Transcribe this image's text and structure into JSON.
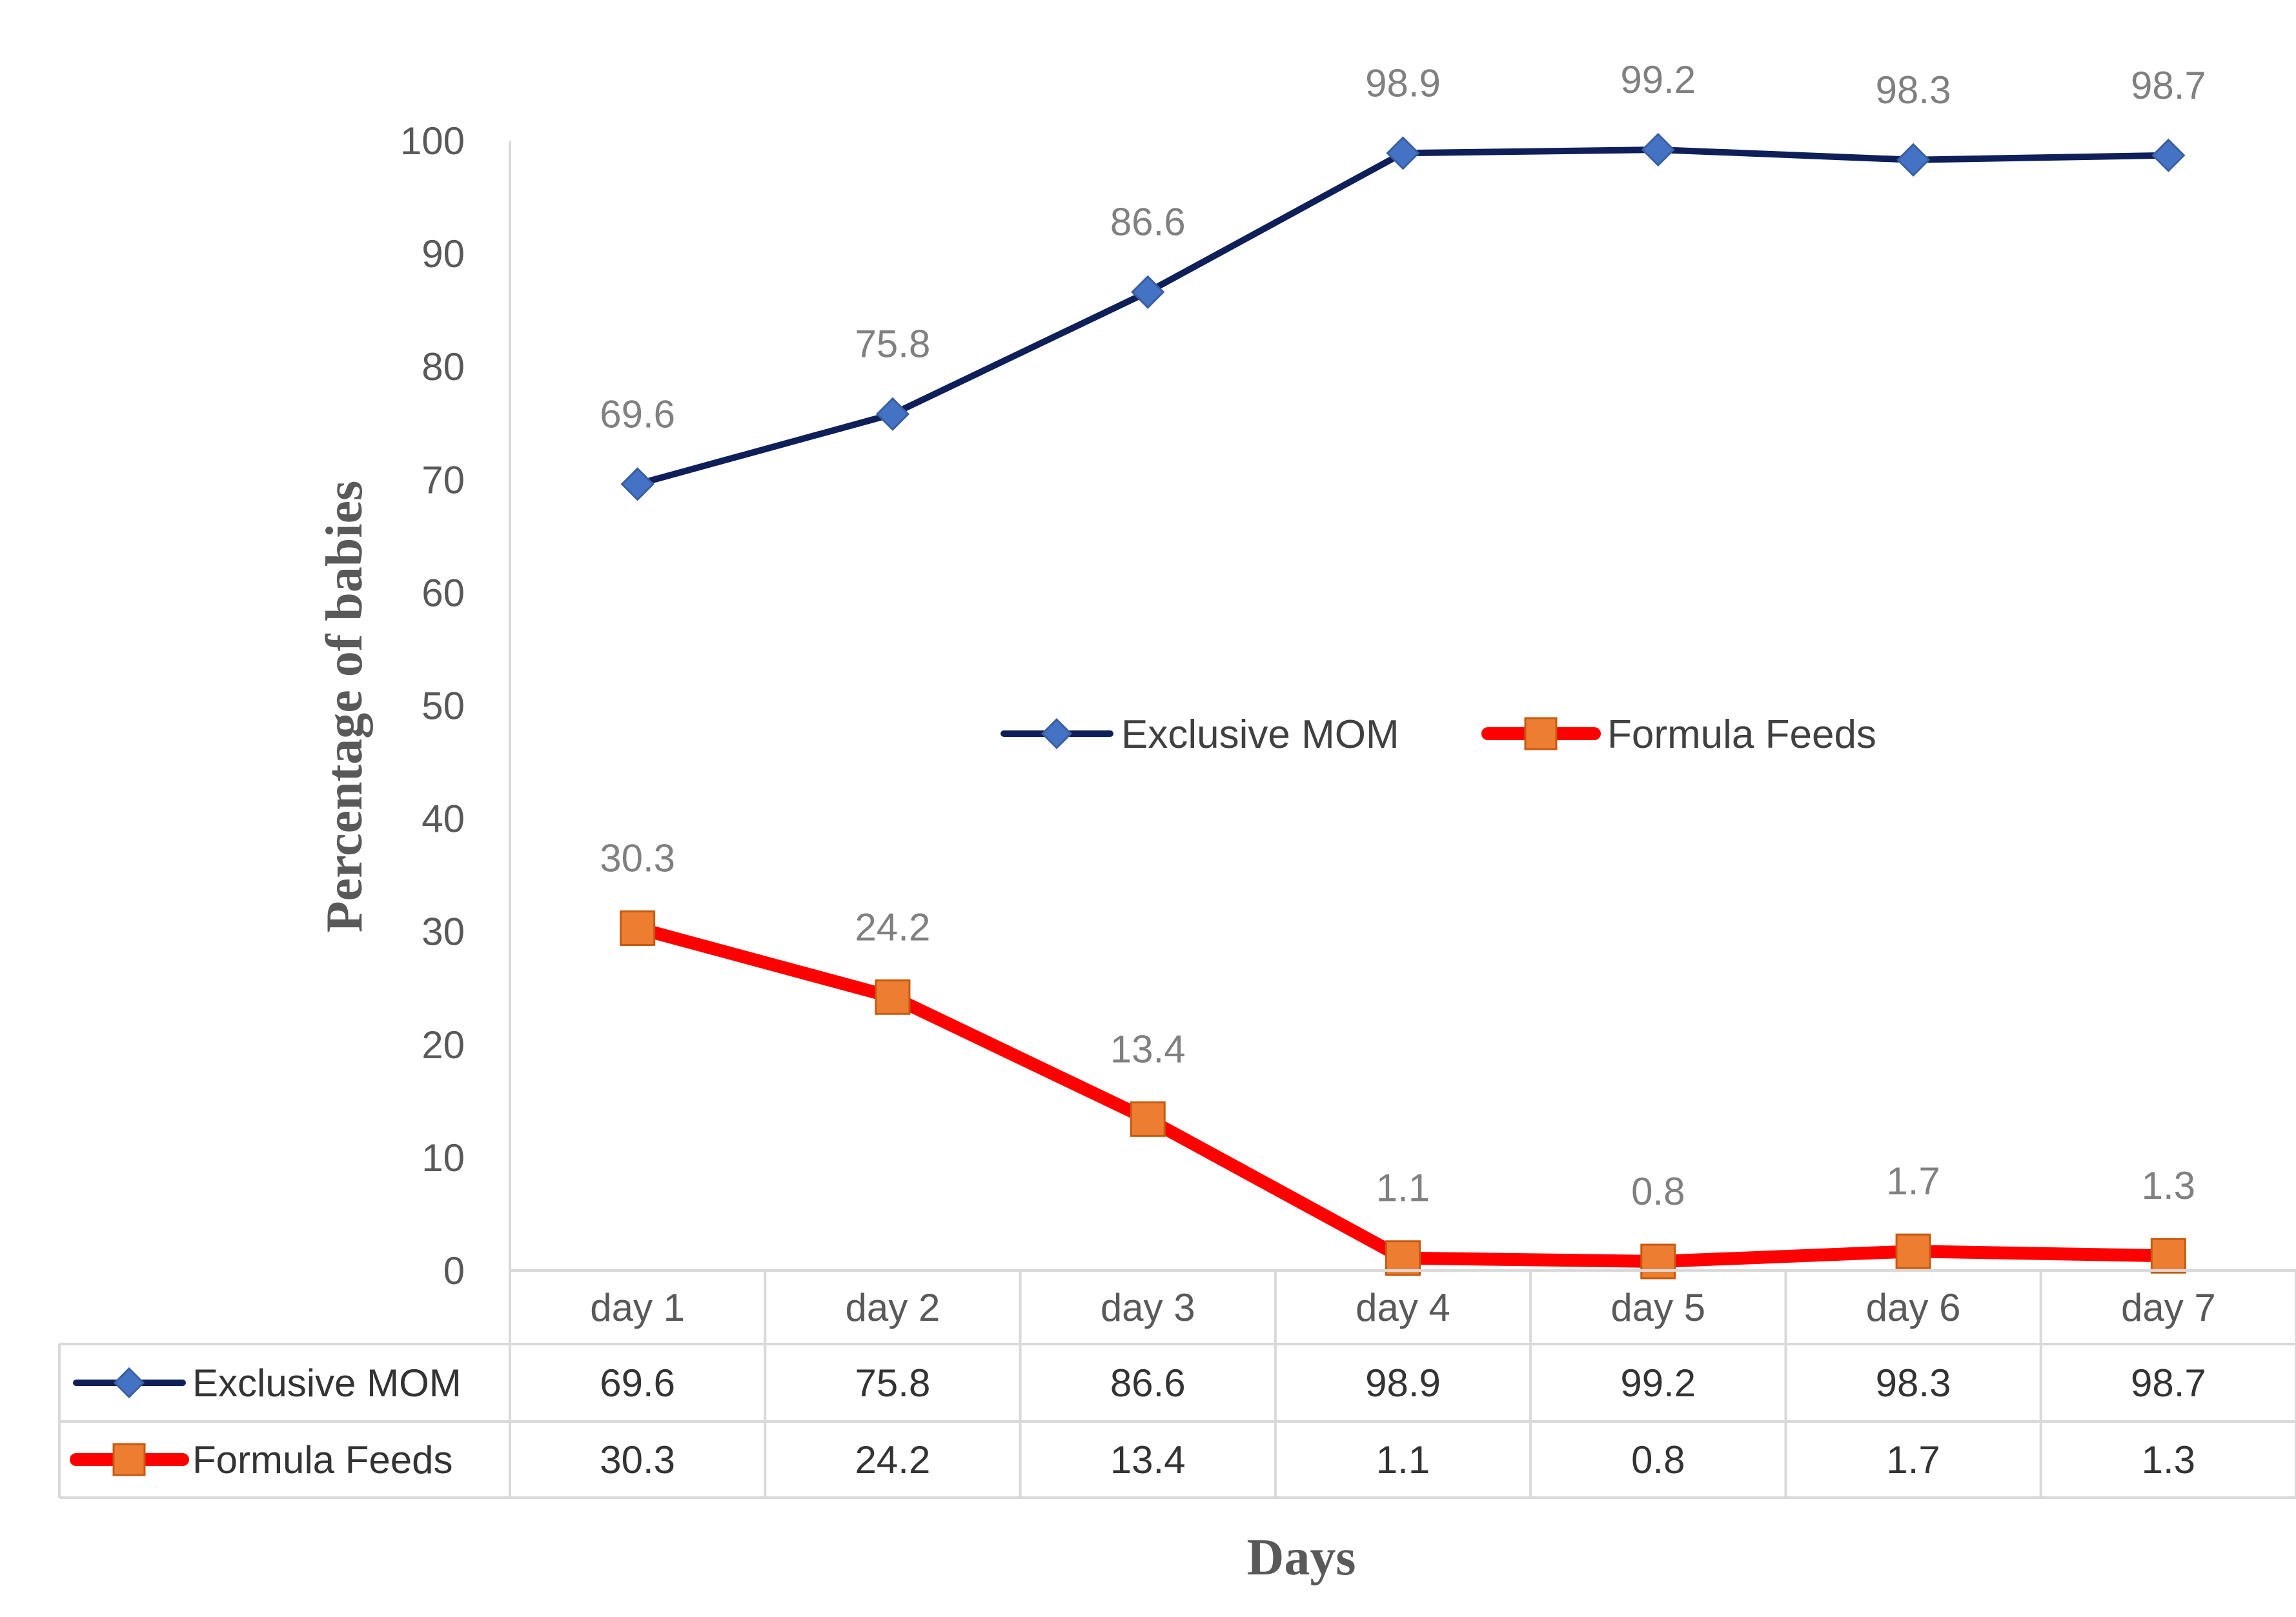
{
  "chart_data": {
    "type": "line",
    "categories": [
      "day 1",
      "day 2",
      "day 3",
      "day 4",
      "day 5",
      "day 6",
      "day 7"
    ],
    "series": [
      {
        "name": "Exclusive MOM",
        "values": [
          69.6,
          75.8,
          86.6,
          98.9,
          99.2,
          98.3,
          98.7
        ],
        "value_labels": [
          "69.6",
          "75.8",
          "86.6",
          "98.9",
          "99.2",
          "98.3",
          "98.7"
        ],
        "line_color": "#0e1f5a",
        "marker_color": "#4472c4",
        "marker": "diamond"
      },
      {
        "name": "Formula Feeds",
        "values": [
          30.3,
          24.2,
          13.4,
          1.1,
          0.8,
          1.7,
          1.3
        ],
        "value_labels": [
          "30.3",
          "24.2",
          "13.4",
          "1.1",
          "0.8",
          "1.7",
          "1.3"
        ],
        "line_color": "#ff0000",
        "marker_color": "#ed7d31",
        "marker": "square"
      }
    ],
    "ylim": [
      0,
      100
    ],
    "yticks": [
      "0",
      "10",
      "20",
      "30",
      "40",
      "50",
      "60",
      "70",
      "80",
      "90",
      "100"
    ],
    "xlabel": "Days",
    "ylabel": "Percentage of babies",
    "legend_position": "center",
    "grid": false,
    "data_table": true
  }
}
